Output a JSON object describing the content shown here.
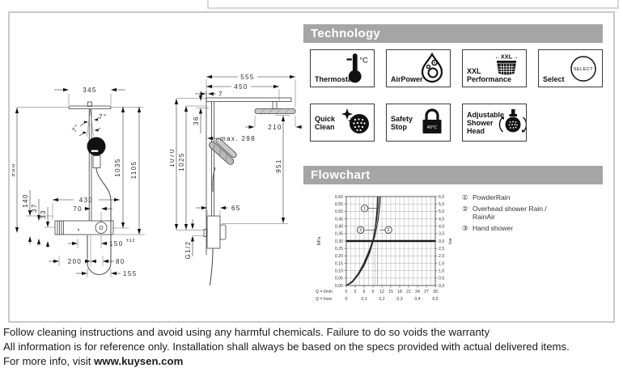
{
  "header": {
    "technology_title": "Technology",
    "flowchart_title": "Flowchart"
  },
  "technology": {
    "items": [
      {
        "label": "Thermostat"
      },
      {
        "label": "AirPower"
      },
      {
        "label": "XXL Performance"
      },
      {
        "label": "Select"
      },
      {
        "label": "Quick Clean"
      },
      {
        "label": "Safety Stop"
      },
      {
        "label": "Adjustable Shower Head"
      }
    ],
    "thermo_unit": "°C",
    "xxl_arrows": "←XXL→",
    "select_badge": "SELECT",
    "lock_badge": "40°C"
  },
  "flowchart": {
    "legend": [
      {
        "num": "①",
        "label": "PowderRain"
      },
      {
        "num": "②",
        "label": "Overhead shower Rain / RainAir"
      },
      {
        "num": "③",
        "label": "Hand shower"
      }
    ]
  },
  "chart_data": {
    "type": "line",
    "title": "Flowchart",
    "x_axis": {
      "label_min": "Q = l/min",
      "label_sec": "Q = l/sec",
      "range_lmin": [
        0,
        30
      ],
      "ticks_lmin": [
        "0",
        "3",
        "6",
        "9",
        "12",
        "15",
        "18",
        "21",
        "24",
        "27",
        "30"
      ],
      "ticks_lsec": [
        {
          "t": "0",
          "x": 0
        },
        {
          "t": "0,1",
          "x": 6
        },
        {
          "t": "0,2",
          "x": 12
        },
        {
          "t": "0,3",
          "x": 18
        },
        {
          "t": "0,4",
          "x": 24
        },
        {
          "t": "0,5",
          "x": 30
        }
      ]
    },
    "y_axis": {
      "left_label": "MPa",
      "right_label": "bar",
      "range_mpa": [
        0,
        0.6
      ],
      "ticks_mpa": [
        "0,00",
        "0,05",
        "0,10",
        "0,15",
        "0,20",
        "0,25",
        "0,30",
        "0,35",
        "0,40",
        "0,45",
        "0,50",
        "0,55",
        "0,60"
      ],
      "ticks_bar": [
        "0,0",
        "0,5",
        "1,0",
        "1,5",
        "2,0",
        "2,5",
        "3,0",
        "3,5",
        "4,0",
        "4,5",
        "5,0",
        "5,5",
        "6,0"
      ]
    },
    "grid": {
      "x_step": 1.5,
      "y_step": 0.05
    },
    "reference_line_mpa": 0.3,
    "guide_lines_lmin": [
      9.7,
      10.6
    ],
    "series": [
      {
        "id": "1",
        "name": "PowderRain",
        "points": [
          [
            0,
            0
          ],
          [
            2,
            0.022
          ],
          [
            4,
            0.07
          ],
          [
            6,
            0.135
          ],
          [
            8,
            0.225
          ],
          [
            9,
            0.3
          ],
          [
            9.8,
            0.4
          ],
          [
            10.3,
            0.5
          ],
          [
            10.5,
            0.6
          ]
        ]
      },
      {
        "id": "2",
        "name": "Overhead shower Rain / RainAir",
        "points": [
          [
            0,
            0
          ],
          [
            2,
            0.025
          ],
          [
            4,
            0.075
          ],
          [
            6,
            0.145
          ],
          [
            8,
            0.235
          ],
          [
            9.6,
            0.33
          ],
          [
            10.6,
            0.43
          ],
          [
            11.2,
            0.52
          ],
          [
            11.5,
            0.6
          ]
        ]
      },
      {
        "id": "3",
        "name": "Hand shower",
        "points": [
          [
            0,
            0
          ],
          [
            2,
            0.028
          ],
          [
            4,
            0.08
          ],
          [
            6,
            0.155
          ],
          [
            8,
            0.25
          ],
          [
            9.3,
            0.33
          ],
          [
            10.2,
            0.44
          ],
          [
            10.8,
            0.54
          ],
          [
            11,
            0.6
          ]
        ]
      }
    ],
    "markers": [
      {
        "label": "1",
        "at": [
          6.2,
          0.52
        ],
        "leader_to": 10.2
      },
      {
        "label": "3",
        "at": [
          4.8,
          0.375
        ],
        "leader_to": 9.9
      },
      {
        "label": "2",
        "at": [
          14.2,
          0.375
        ],
        "leader_to": 11.2
      }
    ]
  },
  "drawing_front": {
    "dims": {
      "w345": "345",
      "angle_l": "7°",
      "angle_r": "7°",
      "h1035": "1035",
      "h1105": "1105",
      "h988": "988",
      "h140": "140",
      "h37": "37",
      "h33": "33",
      "w430": "430",
      "w70": "70",
      "w150": "150",
      "tol150": "±12",
      "w200": "200",
      "w80": "80",
      "w155": "155"
    }
  },
  "drawing_side": {
    "dims": {
      "w555": "555",
      "w450": "450",
      "w7": "7",
      "h36": "36",
      "w210": "210",
      "max298": "max. 298",
      "h1070": "1070",
      "h1025": "1025",
      "h951": "951",
      "w65": "65",
      "thread": "G1/2"
    }
  },
  "footer": {
    "line1": "Follow cleaning instructions and avoid using any harmful chemicals. Failure to do so voids the warranty",
    "line2": "All information is for reference only. Installation shall always be based on the specs provided with actual delivered items.",
    "line3_prefix": "For more info, visit ",
    "line3_bold": "www.kuysen.com"
  }
}
